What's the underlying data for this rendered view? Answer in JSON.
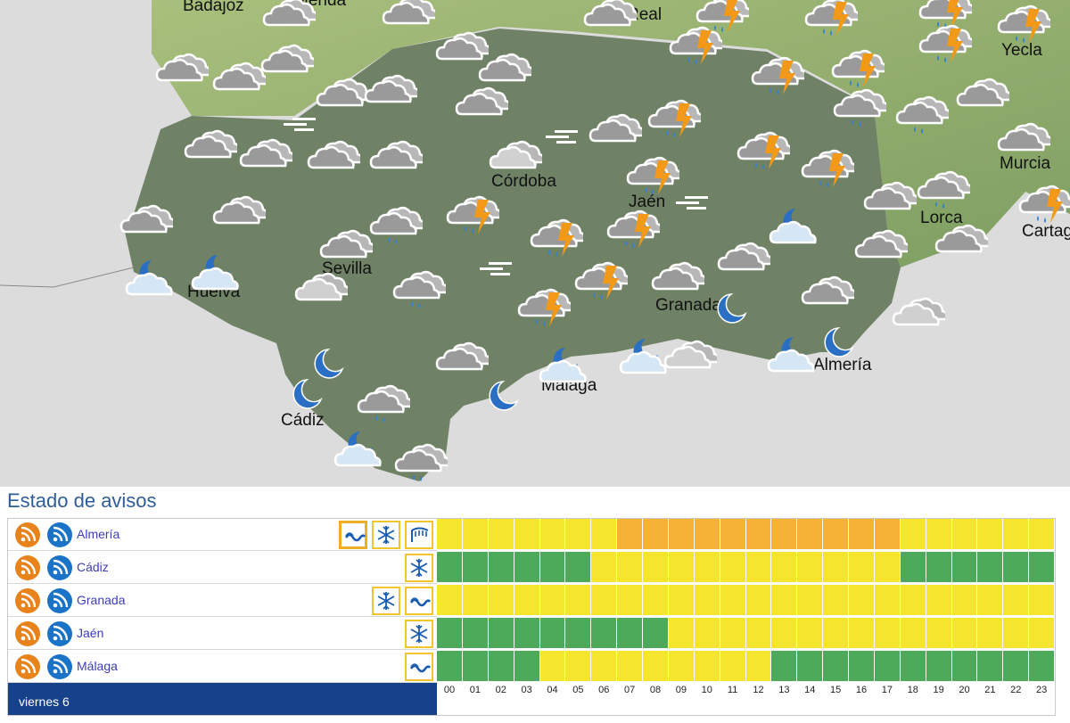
{
  "map": {
    "cities": [
      {
        "id": "badajoz",
        "label": "Badajoz"
      },
      {
        "id": "merida",
        "label": "Mérida"
      },
      {
        "id": "real",
        "label": "Real"
      },
      {
        "id": "yecla",
        "label": "Yecla"
      },
      {
        "id": "murcia",
        "label": "Murcia"
      },
      {
        "id": "cordoba",
        "label": "Córdoba"
      },
      {
        "id": "jaen",
        "label": "Jaén"
      },
      {
        "id": "lorca",
        "label": "Lorca"
      },
      {
        "id": "cartagena",
        "label": "Cartagena"
      },
      {
        "id": "sevilla",
        "label": "Sevilla"
      },
      {
        "id": "huelva",
        "label": "Huelva"
      },
      {
        "id": "granada",
        "label": "Granada"
      },
      {
        "id": "almeria",
        "label": "Almería"
      },
      {
        "id": "malaga",
        "label": "Málaga"
      },
      {
        "id": "cadiz",
        "label": "Cádiz"
      }
    ],
    "symbols": [
      {
        "kind": "cloud-icon"
      },
      {
        "kind": "overcast-icon"
      },
      {
        "kind": "rain-icon"
      },
      {
        "kind": "storm-icon"
      },
      {
        "kind": "night-cloud-icon"
      },
      {
        "kind": "moon-icon"
      },
      {
        "kind": "fog-icon"
      }
    ]
  },
  "avisos": {
    "title": "Estado de avisos",
    "day": "viernes 6",
    "hours": [
      "00",
      "01",
      "02",
      "03",
      "04",
      "05",
      "06",
      "07",
      "08",
      "09",
      "10",
      "11",
      "12",
      "13",
      "14",
      "15",
      "16",
      "17",
      "18",
      "19",
      "20",
      "21",
      "22",
      "23"
    ],
    "colors": {
      "G": "#4caa5a",
      "Y": "#f5e62d",
      "O": "#f5b133"
    },
    "rows": [
      {
        "province": "Almería",
        "icons": [
          "coastal-icon",
          "snow-icon",
          "wind-icon"
        ],
        "selected": 0,
        "levels": "YYYYYYYOOOOOOOOOOOYYYYYY"
      },
      {
        "province": "Cádiz",
        "icons": [
          "snow-icon"
        ],
        "selected": -1,
        "levels": "GGGGGGYYYYYYYYYYYYGGGGGG"
      },
      {
        "province": "Granada",
        "icons": [
          "snow-icon",
          "coastal-icon"
        ],
        "selected": -1,
        "levels": "YYYYYYYYYYYYYYYYYYYYYYYY"
      },
      {
        "province": "Jaén",
        "icons": [
          "snow-icon"
        ],
        "selected": -1,
        "levels": "GGGGGGGGGYYYYYYYYYYYYYYY"
      },
      {
        "province": "Málaga",
        "icons": [
          "coastal-icon"
        ],
        "selected": -1,
        "levels": "GGGGYYYYYYYYYGGGGGGGGGGG"
      }
    ]
  }
}
